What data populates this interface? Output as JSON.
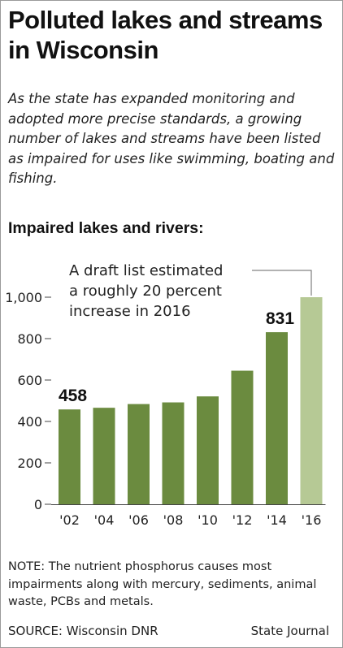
{
  "title": "Polluted lakes and streams in Wisconsin",
  "subtitle": "As the state has expanded monitoring and adopted more precise standards, a growing number of lakes and streams have been listed as impaired for uses like swimming, boating and fishing.",
  "chart_label": "Impaired lakes and rivers:",
  "note": "NOTE: The nutrient phosphorus causes most impairments along with mercury, sediments, animal waste, PCBs and metals.",
  "source": "SOURCE: Wisconsin DNR",
  "credit": "State Journal",
  "colors": {
    "bar": "#6b8b3f",
    "bar_projected": "#b6c995",
    "axis": "#444444"
  },
  "chart_data": {
    "type": "bar",
    "title": "Impaired lakes and rivers:",
    "categories": [
      "'02",
      "'04",
      "'06",
      "'08",
      "'10",
      "'12",
      "'14",
      "'16"
    ],
    "values": [
      458,
      466,
      484,
      492,
      521,
      645,
      831,
      1000
    ],
    "projected": [
      false,
      false,
      false,
      false,
      false,
      false,
      false,
      true
    ],
    "ylim": [
      0,
      1000
    ],
    "yticks": [
      0,
      200,
      400,
      600,
      800,
      1000
    ],
    "ytick_labels": [
      "0",
      "200",
      "400",
      "600",
      "800",
      "1,000"
    ],
    "data_labels": [
      {
        "index": 0,
        "text": "458"
      },
      {
        "index": 6,
        "text": "831"
      }
    ],
    "annotation": {
      "index": 7,
      "lines": [
        "A draft list estimated",
        "a roughly 20 percent",
        "increase in 2016"
      ]
    },
    "grid": false,
    "legend": "none"
  }
}
